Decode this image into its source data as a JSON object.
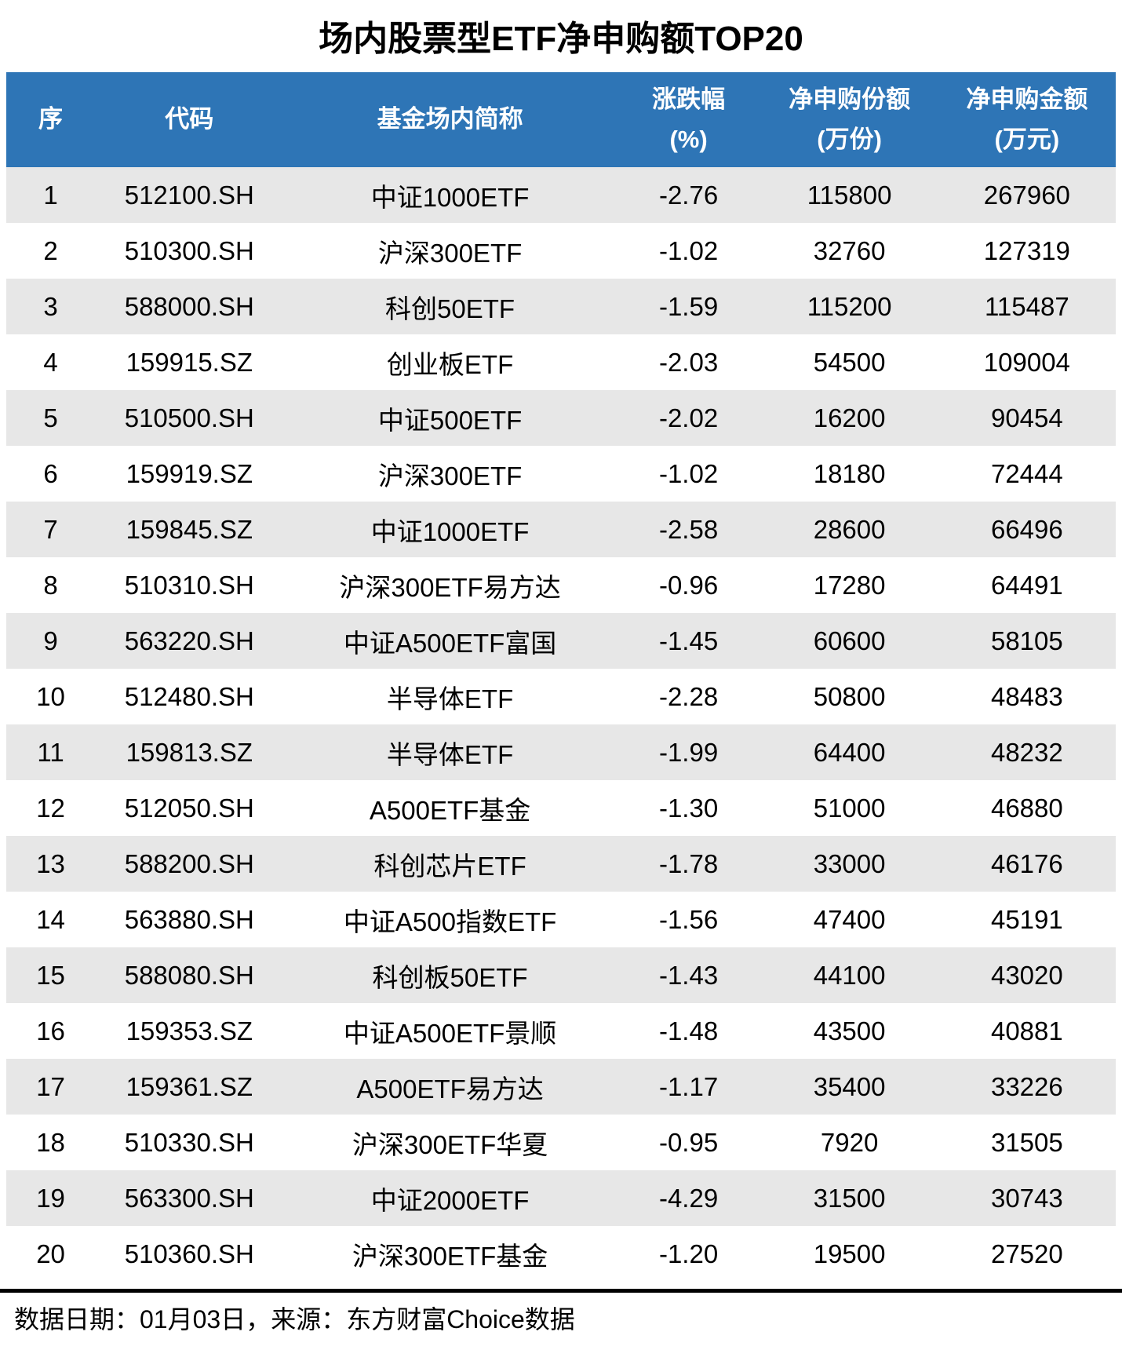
{
  "title": "场内股票型ETF净申购额TOP20",
  "colors": {
    "header_bg": "#2E75B6",
    "header_text": "#FFFFFF",
    "stripe_bg": "#E7E7E7",
    "row_bg": "#FFFFFF",
    "text": "#000000"
  },
  "table": {
    "column_keys": [
      "rank",
      "code",
      "name",
      "change_pct",
      "shares",
      "amount"
    ],
    "header": [
      {
        "line1": "序",
        "line2": ""
      },
      {
        "line1": "代码",
        "line2": ""
      },
      {
        "line1": "基金场内简称",
        "line2": ""
      },
      {
        "line1": "涨跌幅",
        "line2": "(%)"
      },
      {
        "line1": "净申购份额",
        "line2": "(万份)"
      },
      {
        "line1": "净申购金额",
        "line2": "(万元)"
      }
    ]
  },
  "footer": {
    "text": "数据日期：01月03日，来源：东方财富Choice数据"
  },
  "chart_data": {
    "type": "table",
    "title": "场内股票型ETF净申购额TOP20",
    "columns": [
      "序",
      "代码",
      "基金场内简称",
      "涨跌幅(%)",
      "净申购份额(万份)",
      "净申购金额(万元)"
    ],
    "rows": [
      [
        "1",
        "512100.SH",
        "中证1000ETF",
        "-2.76",
        "115800",
        "267960"
      ],
      [
        "2",
        "510300.SH",
        "沪深300ETF",
        "-1.02",
        "32760",
        "127319"
      ],
      [
        "3",
        "588000.SH",
        "科创50ETF",
        "-1.59",
        "115200",
        "115487"
      ],
      [
        "4",
        "159915.SZ",
        "创业板ETF",
        "-2.03",
        "54500",
        "109004"
      ],
      [
        "5",
        "510500.SH",
        "中证500ETF",
        "-2.02",
        "16200",
        "90454"
      ],
      [
        "6",
        "159919.SZ",
        "沪深300ETF",
        "-1.02",
        "18180",
        "72444"
      ],
      [
        "7",
        "159845.SZ",
        "中证1000ETF",
        "-2.58",
        "28600",
        "66496"
      ],
      [
        "8",
        "510310.SH",
        "沪深300ETF易方达",
        "-0.96",
        "17280",
        "64491"
      ],
      [
        "9",
        "563220.SH",
        "中证A500ETF富国",
        "-1.45",
        "60600",
        "58105"
      ],
      [
        "10",
        "512480.SH",
        "半导体ETF",
        "-2.28",
        "50800",
        "48483"
      ],
      [
        "11",
        "159813.SZ",
        "半导体ETF",
        "-1.99",
        "64400",
        "48232"
      ],
      [
        "12",
        "512050.SH",
        "A500ETF基金",
        "-1.30",
        "51000",
        "46880"
      ],
      [
        "13",
        "588200.SH",
        "科创芯片ETF",
        "-1.78",
        "33000",
        "46176"
      ],
      [
        "14",
        "563880.SH",
        "中证A500指数ETF",
        "-1.56",
        "47400",
        "45191"
      ],
      [
        "15",
        "588080.SH",
        "科创板50ETF",
        "-1.43",
        "44100",
        "43020"
      ],
      [
        "16",
        "159353.SZ",
        "中证A500ETF景顺",
        "-1.48",
        "43500",
        "40881"
      ],
      [
        "17",
        "159361.SZ",
        "A500ETF易方达",
        "-1.17",
        "35400",
        "33226"
      ],
      [
        "18",
        "510330.SH",
        "沪深300ETF华夏",
        "-0.95",
        "7920",
        "31505"
      ],
      [
        "19",
        "563300.SH",
        "中证2000ETF",
        "-4.29",
        "31500",
        "30743"
      ],
      [
        "20",
        "510360.SH",
        "沪深300ETF基金",
        "-1.20",
        "19500",
        "27520"
      ]
    ]
  }
}
